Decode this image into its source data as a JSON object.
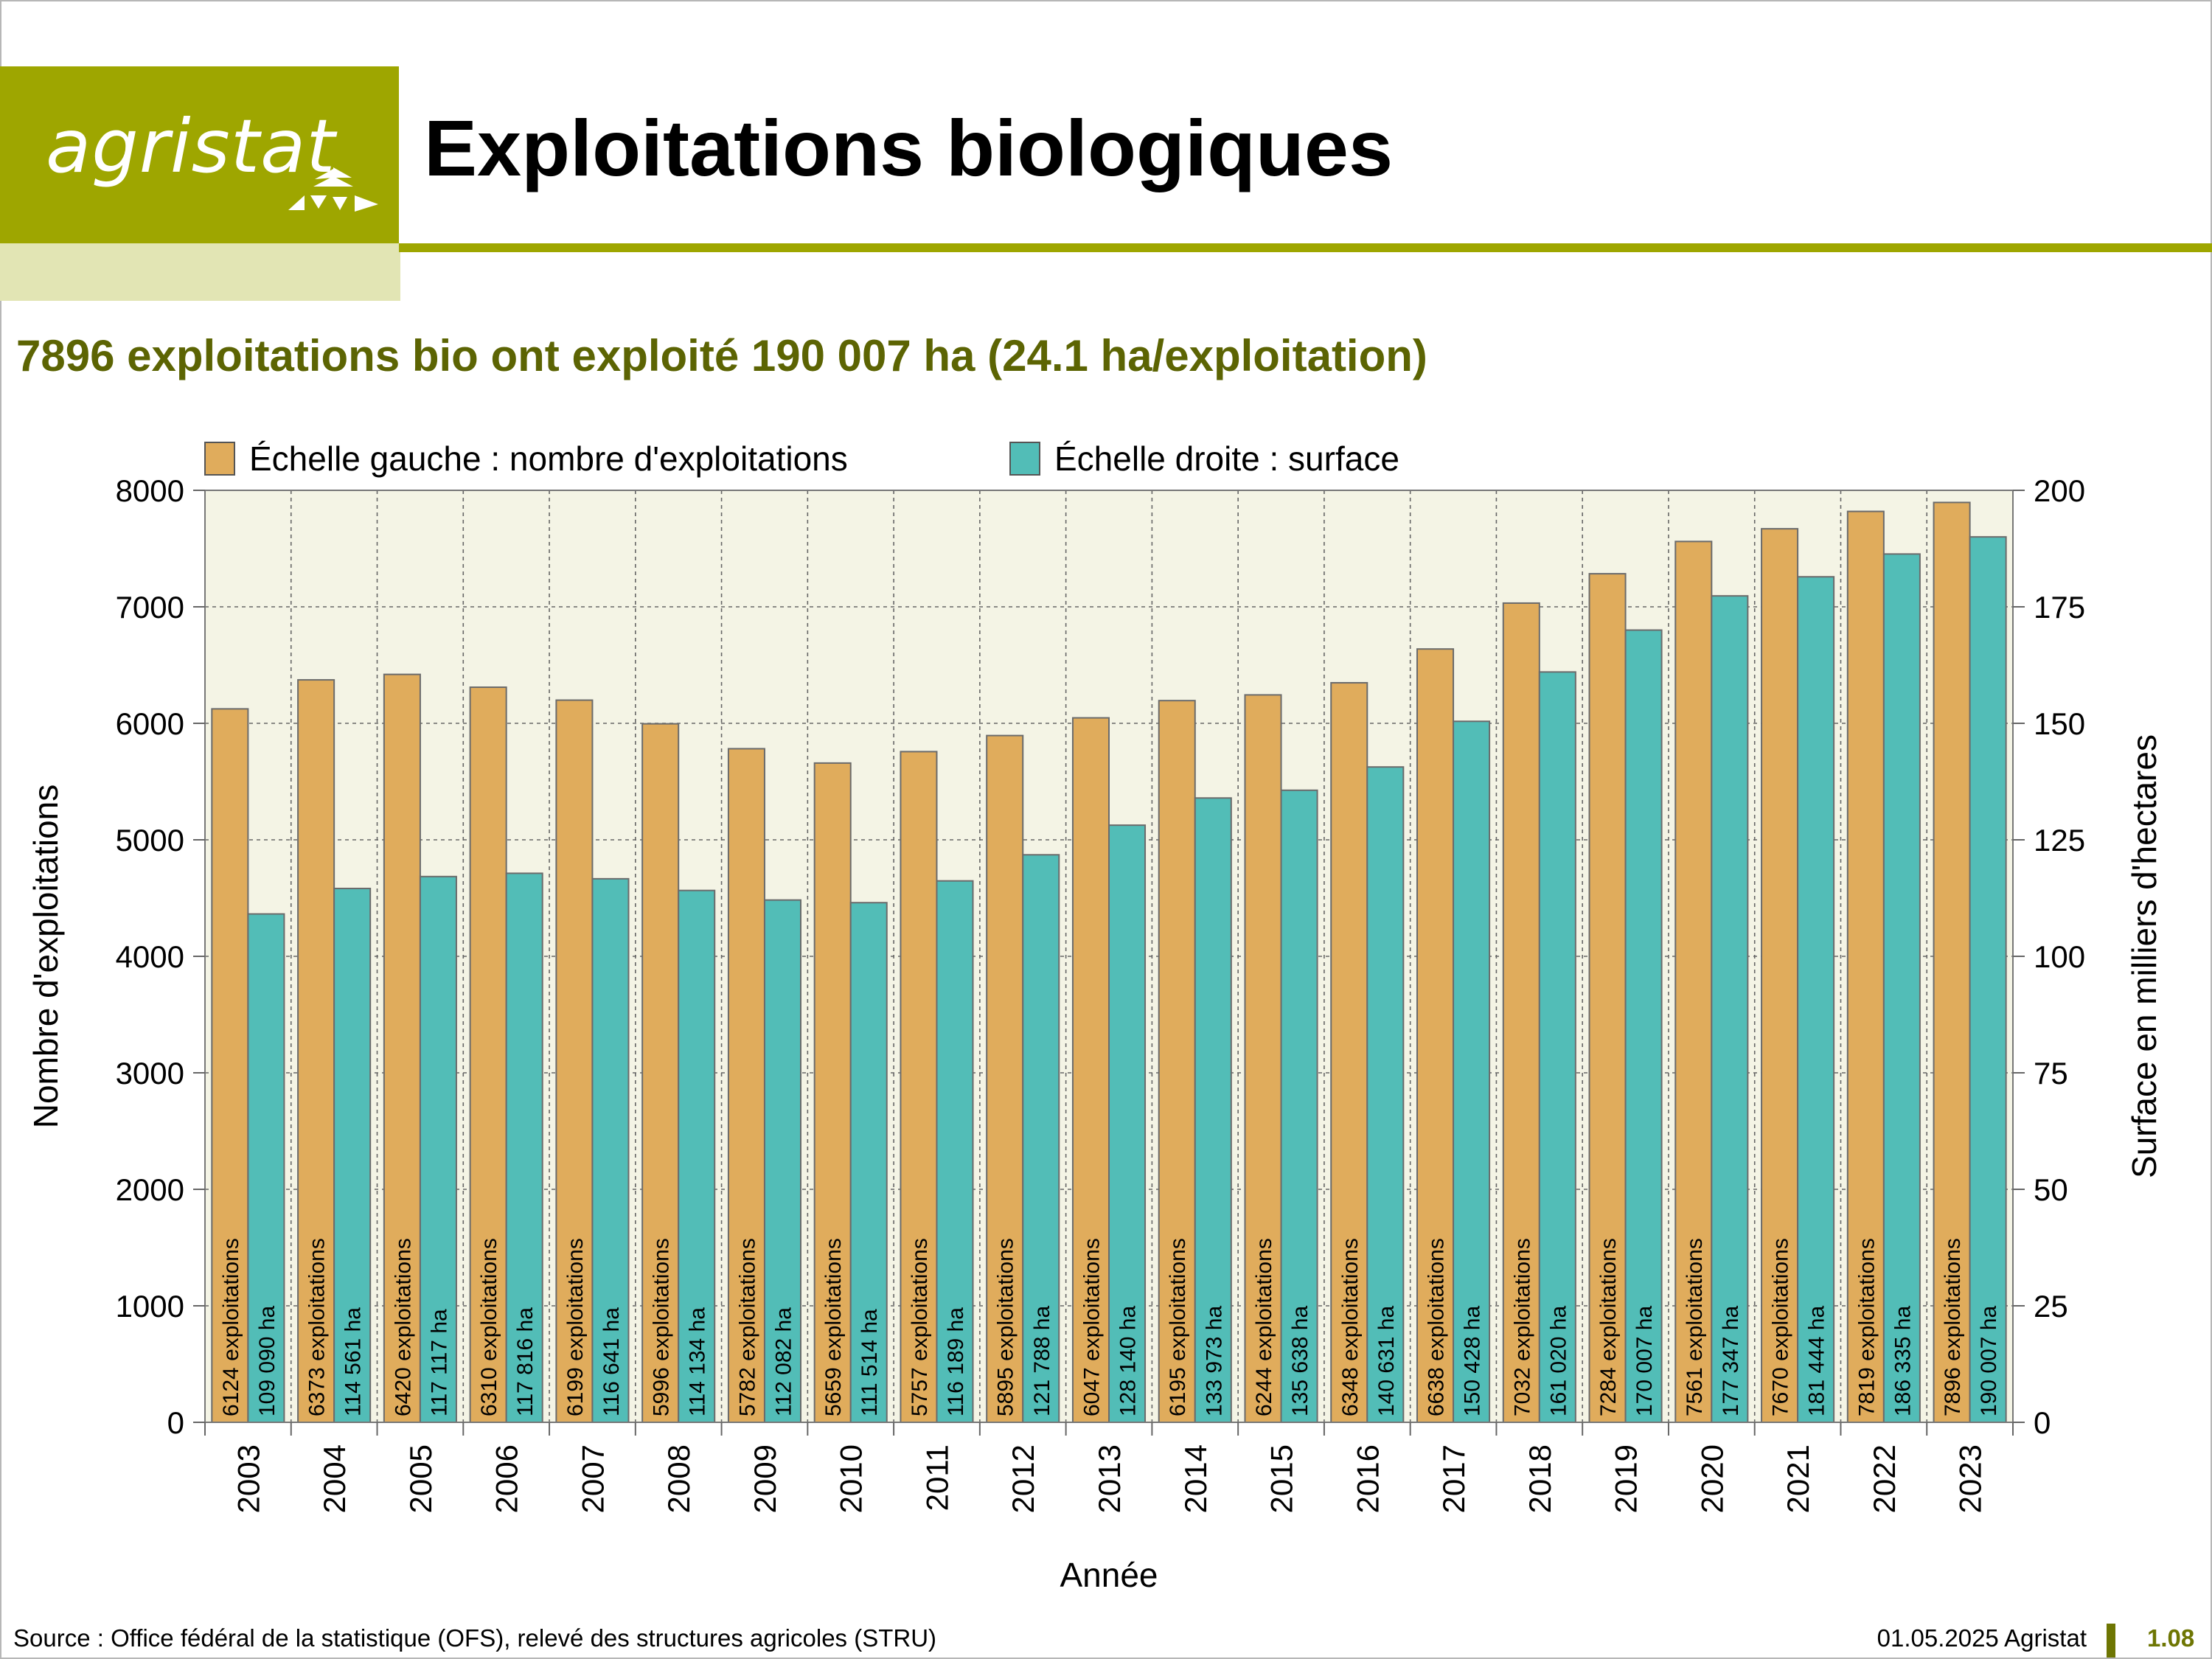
{
  "logo": {
    "text": "agristat"
  },
  "header": {
    "title": "Exploitations biologiques"
  },
  "subtitle": "7896 exploitations bio ont exploité 190 007 ha (24.1 ha/exploitation)",
  "footer": {
    "source": "Source : Office fédéral de la statistique (OFS), relevé des structures agricoles (STRU)",
    "date": "01.05.2025 Agristat",
    "page": "1.08"
  },
  "colors": {
    "brand": "#9ea600",
    "bar_left": "#e0ac5c",
    "bar_right": "#52bdb7",
    "plot_bg": "#f4f4e5"
  },
  "chart_data": {
    "type": "bar",
    "xlabel": "Année",
    "ylabel_left": "Nombre d'exploitations",
    "ylabel_right": "Surface en milliers d'hectares",
    "ylim_left": [
      0,
      8000
    ],
    "ylim_right": [
      0,
      200
    ],
    "yticks_left": [
      "0",
      "1000",
      "2000",
      "3000",
      "4000",
      "5000",
      "6000",
      "7000",
      "8000"
    ],
    "yticks_right": [
      "0",
      "25",
      "50",
      "75",
      "100",
      "125",
      "150",
      "175",
      "200"
    ],
    "grid": true,
    "legend_position": "top",
    "categories": [
      "2003",
      "2004",
      "2005",
      "2006",
      "2007",
      "2008",
      "2009",
      "2010",
      "2011",
      "2012",
      "2013",
      "2014",
      "2015",
      "2016",
      "2017",
      "2018",
      "2019",
      "2020",
      "2021",
      "2022",
      "2023"
    ],
    "series": [
      {
        "name": "Échelle gauche : nombre d'exploitations",
        "axis": "left",
        "values": [
          6124,
          6373,
          6420,
          6310,
          6199,
          5996,
          5782,
          5659,
          5757,
          5895,
          6047,
          6195,
          6244,
          6348,
          6638,
          7032,
          7284,
          7561,
          7670,
          7819,
          7896
        ],
        "labels": [
          "6124 exploitations",
          "6373 exploitations",
          "6420 exploitations",
          "6310 exploitations",
          "6199 exploitations",
          "5996 exploitations",
          "5782 exploitations",
          "5659 exploitations",
          "5757 exploitations",
          "5895 exploitations",
          "6047 exploitations",
          "6195 exploitations",
          "6244 exploitations",
          "6348 exploitations",
          "6638 exploitations",
          "7032 exploitations",
          "7284 exploitations",
          "7561 exploitations",
          "7670 exploitations",
          "7819 exploitations",
          "7896 exploitations"
        ]
      },
      {
        "name": "Échelle droite : surface",
        "axis": "right",
        "values": [
          109090,
          114561,
          117117,
          117816,
          116641,
          114134,
          112082,
          111514,
          116189,
          121788,
          128140,
          133973,
          135638,
          140631,
          150428,
          161020,
          170007,
          177347,
          181444,
          186335,
          190007
        ],
        "labels": [
          "109 090 ha",
          "114 561 ha",
          "117 117 ha",
          "117 816 ha",
          "116 641 ha",
          "114 134 ha",
          "112 082 ha",
          "111 514 ha",
          "116 189 ha",
          "121 788 ha",
          "128 140 ha",
          "133 973 ha",
          "135 638 ha",
          "140 631 ha",
          "150 428 ha",
          "161 020 ha",
          "170 007 ha",
          "177 347 ha",
          "181 444 ha",
          "186 335 ha",
          "190 007 ha"
        ]
      }
    ]
  }
}
